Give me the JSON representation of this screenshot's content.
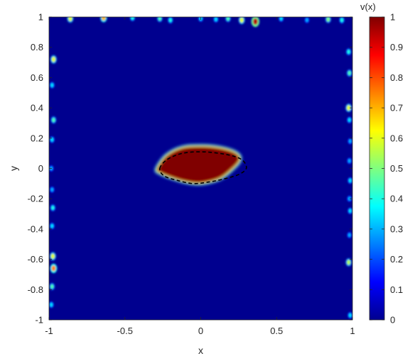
{
  "chart_data": {
    "type": "heatmap",
    "title": "",
    "xlabel": "x",
    "ylabel": "y",
    "xlim": [
      -1,
      1
    ],
    "ylim": [
      -1,
      1
    ],
    "x_ticks": [
      -1,
      -0.5,
      0,
      0.5,
      1
    ],
    "x_tick_labels": [
      "-1",
      "-0.5",
      "0",
      "0.5",
      "1"
    ],
    "y_ticks": [
      1,
      0.8,
      0.6,
      0.4,
      0.2,
      0,
      -0.2,
      -0.4,
      -0.6,
      -0.8,
      -1
    ],
    "y_tick_labels": [
      "1",
      "0.8",
      "0.6",
      "0.4",
      "0.2",
      "0",
      "-0.2",
      "-0.4",
      "-0.6",
      "-0.8",
      "-1"
    ],
    "colormap": "jet",
    "background_value": 0,
    "colorbar": {
      "label": "v(x)",
      "range": [
        0,
        1
      ],
      "ticks": [
        1,
        0.9,
        0.8,
        0.7,
        0.6,
        0.5,
        0.4,
        0.3,
        0.2,
        0.1,
        0
      ],
      "tick_labels": [
        "1",
        "0.9",
        "0.8",
        "0.7",
        "0.6",
        "0.5",
        "0.4",
        "0.3",
        "0.2",
        "0.1",
        "0"
      ]
    },
    "regions": [
      {
        "name": "high-value region (v≈1)",
        "value": 1,
        "boundary": [
          [
            -0.28,
            0.0
          ],
          [
            -0.22,
            0.08
          ],
          [
            -0.12,
            0.13
          ],
          [
            0.0,
            0.14
          ],
          [
            0.12,
            0.13
          ],
          [
            0.22,
            0.1
          ],
          [
            0.25,
            0.06
          ],
          [
            0.2,
            0.0
          ],
          [
            0.12,
            -0.06
          ],
          [
            0.0,
            -0.09
          ],
          [
            -0.1,
            -0.08
          ],
          [
            -0.2,
            -0.05
          ],
          [
            -0.27,
            -0.02
          ]
        ]
      }
    ],
    "reference_contour": {
      "style": "dashed",
      "color": "#000000",
      "points": [
        [
          -0.27,
          0.0
        ],
        [
          -0.22,
          0.06
        ],
        [
          -0.12,
          0.1
        ],
        [
          0.0,
          0.11
        ],
        [
          0.12,
          0.1
        ],
        [
          0.22,
          0.08
        ],
        [
          0.28,
          0.05
        ],
        [
          0.3,
          0.0
        ],
        [
          0.25,
          -0.04
        ],
        [
          0.15,
          -0.07
        ],
        [
          0.05,
          -0.09
        ],
        [
          -0.05,
          -0.1
        ],
        [
          -0.15,
          -0.08
        ],
        [
          -0.24,
          -0.05
        ]
      ]
    },
    "spots": [
      {
        "x": -0.86,
        "y": 0.99,
        "v": 0.6
      },
      {
        "x": -0.64,
        "y": 0.995,
        "v": 0.7
      },
      {
        "x": -0.45,
        "y": 0.995,
        "v": 0.4
      },
      {
        "x": -0.27,
        "y": 0.99,
        "v": 0.45
      },
      {
        "x": -0.2,
        "y": 0.98,
        "v": 0.4
      },
      {
        "x": 0.0,
        "y": 0.99,
        "v": 0.35
      },
      {
        "x": 0.1,
        "y": 0.985,
        "v": 0.35
      },
      {
        "x": 0.18,
        "y": 0.99,
        "v": 0.45
      },
      {
        "x": 0.27,
        "y": 0.98,
        "v": 0.6
      },
      {
        "x": 0.36,
        "y": 0.97,
        "v": 0.95
      },
      {
        "x": 0.53,
        "y": 0.99,
        "v": 0.35
      },
      {
        "x": 0.7,
        "y": 0.98,
        "v": 0.3
      },
      {
        "x": 0.84,
        "y": 0.985,
        "v": 0.5
      },
      {
        "x": 0.93,
        "y": 0.98,
        "v": 0.4
      },
      {
        "x": -0.97,
        "y": 0.72,
        "v": 0.6
      },
      {
        "x": -0.98,
        "y": 0.55,
        "v": 0.35
      },
      {
        "x": -0.97,
        "y": 0.32,
        "v": 0.45
      },
      {
        "x": -0.98,
        "y": 0.19,
        "v": 0.35
      },
      {
        "x": -0.985,
        "y": 0.0,
        "v": 0.3
      },
      {
        "x": -0.98,
        "y": -0.14,
        "v": 0.3
      },
      {
        "x": -0.975,
        "y": -0.26,
        "v": 0.4
      },
      {
        "x": -0.98,
        "y": -0.38,
        "v": 0.35
      },
      {
        "x": -0.975,
        "y": -0.58,
        "v": 0.6
      },
      {
        "x": -0.97,
        "y": -0.66,
        "v": 0.75
      },
      {
        "x": -0.98,
        "y": -0.78,
        "v": 0.45
      },
      {
        "x": -0.985,
        "y": -0.9,
        "v": 0.35
      },
      {
        "x": 0.975,
        "y": 0.77,
        "v": 0.4
      },
      {
        "x": 0.98,
        "y": 0.63,
        "v": 0.45
      },
      {
        "x": 0.975,
        "y": 0.4,
        "v": 0.6
      },
      {
        "x": 0.98,
        "y": 0.32,
        "v": 0.35
      },
      {
        "x": 0.985,
        "y": 0.18,
        "v": 0.3
      },
      {
        "x": 0.98,
        "y": 0.05,
        "v": 0.3
      },
      {
        "x": 0.985,
        "y": -0.08,
        "v": 0.35
      },
      {
        "x": 0.98,
        "y": -0.2,
        "v": 0.3
      },
      {
        "x": 0.985,
        "y": -0.28,
        "v": 0.35
      },
      {
        "x": 0.98,
        "y": -0.44,
        "v": 0.3
      },
      {
        "x": 0.975,
        "y": -0.62,
        "v": 0.55
      },
      {
        "x": 0.985,
        "y": -0.97,
        "v": 0.35
      }
    ]
  }
}
